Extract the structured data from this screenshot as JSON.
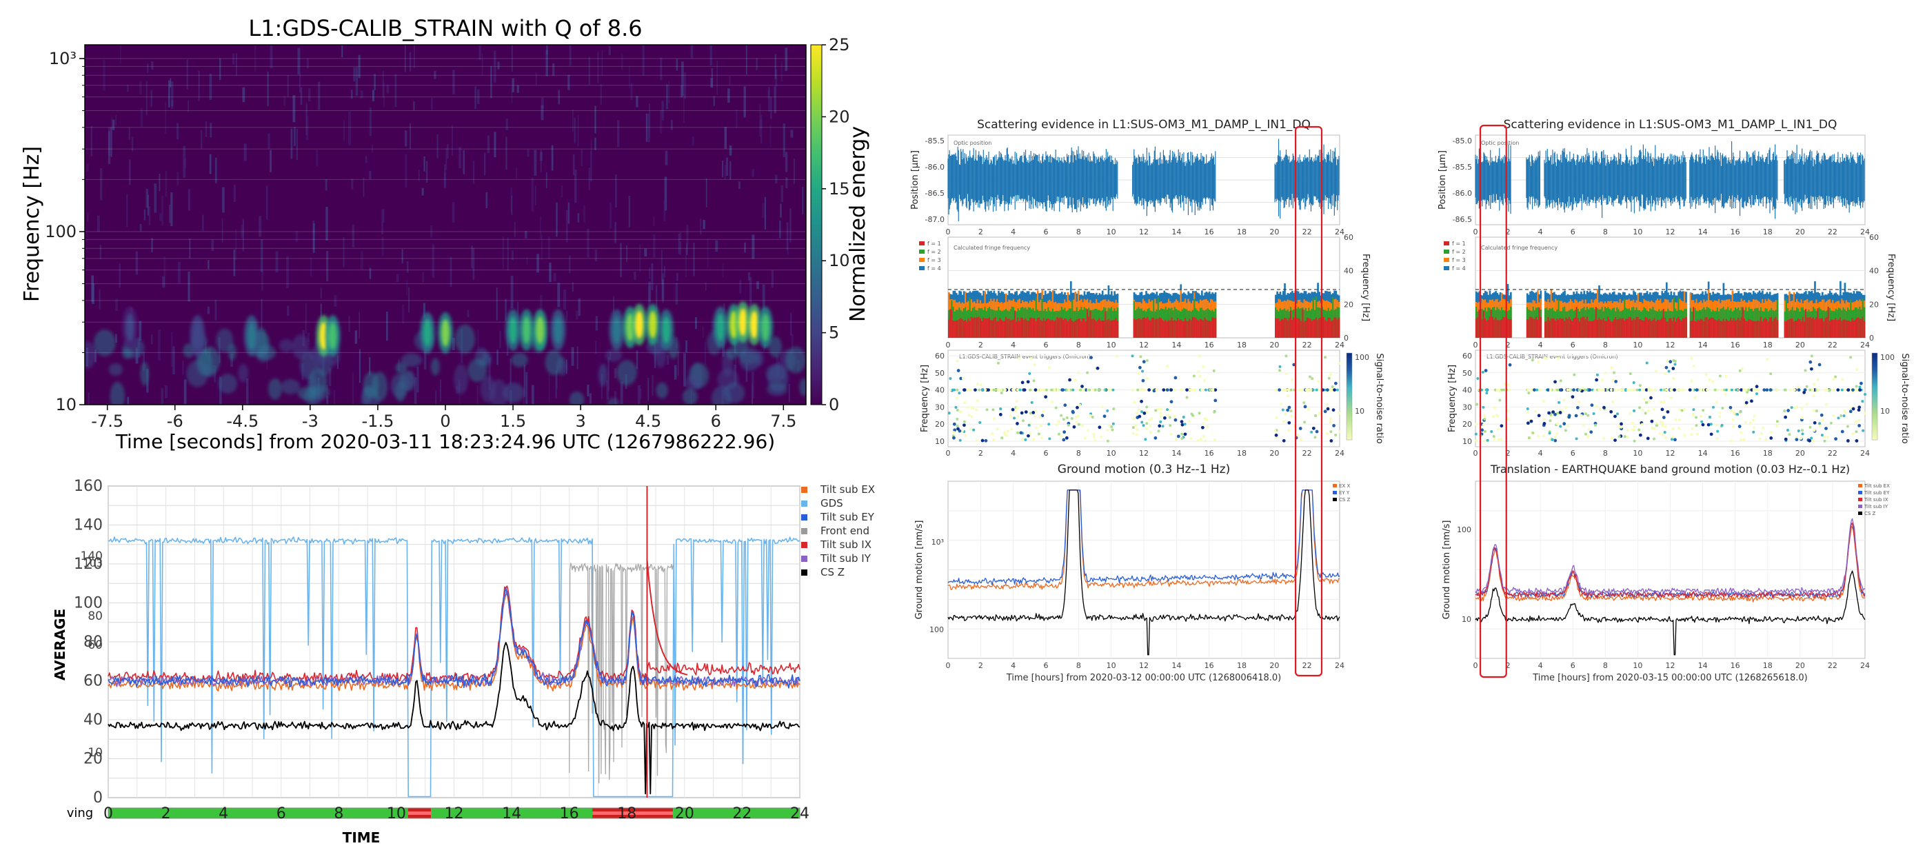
{
  "colors": {
    "viridis": [
      "#440154",
      "#482475",
      "#414487",
      "#355f8d",
      "#2a788e",
      "#21918c",
      "#22a884",
      "#44bf70",
      "#7ad151",
      "#bddf26",
      "#fde725"
    ],
    "gds": "#6ab4ee",
    "tilt_ex": "#ee6a20",
    "tilt_ey": "#2b5fd8",
    "front_end": "#9a9a9a",
    "tilt_ix": "#d8262f",
    "tilt_iy": "#8a62c4",
    "cs_z": "#000000",
    "scatter_blue": "#1f77b4",
    "red_box": "#e0181f",
    "fringe": [
      "#d62728",
      "#2ca02c",
      "#ff7f0e",
      "#1f77b4"
    ],
    "snr_scale": [
      "#f7fcb9",
      "#addd8e",
      "#41b6c4",
      "#225ea8",
      "#0c2c84"
    ]
  },
  "panel_a": {
    "title": "L1:GDS-CALIB_STRAIN with Q of 8.6",
    "ylabel": "Frequency [Hz]",
    "xlabel": "Time [seconds] from 2020-03-11 18:23:24.96 UTC (1267986222.96)",
    "colorbar_label": "Normalized energy",
    "chart_data": {
      "type": "heatmap",
      "xlim": [
        -8,
        8
      ],
      "ylim": [
        10,
        1200
      ],
      "yscale": "log",
      "x_ticks": [
        "-7.5",
        "-6",
        "-4.5",
        "-3",
        "-1.5",
        "0",
        "1.5",
        "3",
        "4.5",
        "6",
        "7.5"
      ],
      "x_tick_values": [
        -7.5,
        -6,
        -4.5,
        -3,
        -1.5,
        0,
        1.5,
        3,
        4.5,
        6,
        7.5
      ],
      "y_ticks": [
        "10",
        "100",
        "10³"
      ],
      "y_tick_values": [
        10,
        100,
        1000
      ],
      "colorbar_ticks": [
        "0",
        "5",
        "10",
        "15",
        "20",
        "25"
      ],
      "colorbar_range": [
        0,
        25
      ],
      "blobs": [
        {
          "t": -7.0,
          "f": 28,
          "e": 5
        },
        {
          "t": -5.5,
          "f": 25,
          "e": 6
        },
        {
          "t": -4.3,
          "f": 25,
          "e": 9
        },
        {
          "t": -2.7,
          "f": 25,
          "e": 24
        },
        {
          "t": -2.5,
          "f": 25,
          "e": 18
        },
        {
          "t": -0.4,
          "f": 26,
          "e": 15
        },
        {
          "t": 0.0,
          "f": 26,
          "e": 19
        },
        {
          "t": 1.5,
          "f": 27,
          "e": 14
        },
        {
          "t": 1.8,
          "f": 27,
          "e": 17
        },
        {
          "t": 2.1,
          "f": 27,
          "e": 20
        },
        {
          "t": 2.5,
          "f": 27,
          "e": 11
        },
        {
          "t": 3.8,
          "f": 27,
          "e": 10
        },
        {
          "t": 4.1,
          "f": 28,
          "e": 20
        },
        {
          "t": 4.3,
          "f": 29,
          "e": 25
        },
        {
          "t": 4.6,
          "f": 29,
          "e": 22
        },
        {
          "t": 4.9,
          "f": 27,
          "e": 15
        },
        {
          "t": 6.1,
          "f": 28,
          "e": 14
        },
        {
          "t": 6.4,
          "f": 29,
          "e": 23
        },
        {
          "t": 6.6,
          "f": 30,
          "e": 25
        },
        {
          "t": 6.85,
          "f": 29,
          "e": 24
        },
        {
          "t": 7.1,
          "f": 28,
          "e": 17
        }
      ]
    }
  },
  "panel_b": {
    "ylabel": "AVERAGE",
    "xlabel": "TIME",
    "left_edge_label": "ving",
    "chart_data": {
      "type": "line",
      "xlim": [
        0,
        24
      ],
      "ylim": [
        0,
        160
      ],
      "x_ticks": [
        "0",
        "2",
        "4",
        "6",
        "8",
        "10",
        "12",
        "14",
        "16",
        "18",
        "20",
        "22",
        "24"
      ],
      "y_ticks": [
        "0",
        "20",
        "40",
        "60",
        "80",
        "100",
        "120",
        "140",
        "160"
      ],
      "overlay_ticks": [
        "10",
        "60",
        "80",
        "103",
        "140"
      ],
      "series": [
        {
          "name": "Tilt sub EX",
          "level": 58
        },
        {
          "name": "GDS",
          "level": 132
        },
        {
          "name": "Tilt sub EY",
          "level": 60
        },
        {
          "name": "Front end",
          "level": 130
        },
        {
          "name": "Tilt sub IX",
          "level": 62
        },
        {
          "name": "Tilt sub IY",
          "level": 60
        },
        {
          "name": "CS Z",
          "level": 37
        }
      ],
      "status_bar": [
        {
          "from": 0,
          "to": 10.4,
          "state": "ok"
        },
        {
          "from": 10.4,
          "to": 11.2,
          "state": "bad"
        },
        {
          "from": 11.2,
          "to": 16.8,
          "state": "ok"
        },
        {
          "from": 16.8,
          "to": 19.6,
          "state": "bad"
        },
        {
          "from": 19.6,
          "to": 24,
          "state": "ok"
        }
      ],
      "red_marker_x": 18.7
    }
  },
  "panel_c": {
    "title": "Scattering evidence in L1:SUS-OM3_M1_DAMP_L_IN1_DQ",
    "pos_ylabel": "Position [µm]",
    "pos_legend": "Optic position",
    "pos_ticks": [
      "-85.5",
      "-86.0",
      "-86.5",
      "-87.0"
    ],
    "fringe_ylabel": "Frequency [Hz]",
    "fringe_legend": "Calculated fringe frequency",
    "fringe_ticks": [
      "0",
      "20",
      "40",
      "60"
    ],
    "fringe_orders": [
      "f = 1",
      "f = 2",
      "f = 3",
      "f = 4"
    ],
    "trig_ylabel": "Frequency [Hz]",
    "trig_legend": "L1:GDS-CALIB_STRAIN event triggers (Omicron)",
    "trig_ticks": [
      "10",
      "20",
      "30",
      "40",
      "50",
      "60"
    ],
    "snr_label": "Signal-to-noise ratio",
    "snr_ticks": [
      "100",
      "10"
    ],
    "ground_title": "Ground motion (0.3 Hz--1 Hz)",
    "ground_ylabel": "Ground motion [nm/s]",
    "ground_ticks": [
      "10³",
      "100"
    ],
    "ground_legend": [
      "EX X",
      "EY Y",
      "CS Z"
    ],
    "xlabel": "Time [hours] from 2020-03-12 00:00:00 UTC (1268006418.0)",
    "x_ticks": [
      "0",
      "2",
      "4",
      "6",
      "8",
      "10",
      "12",
      "14",
      "16",
      "18",
      "20",
      "22",
      "24"
    ],
    "chart_data": {
      "type": "line",
      "xlim": [
        0,
        24
      ],
      "gaps": [
        [
          10.4,
          11.3
        ],
        [
          16.4,
          20.0
        ]
      ],
      "highlight_x": [
        21.3,
        22.9
      ],
      "position_center": -86.05,
      "ground_peaks": [
        {
          "x": 7.7,
          "v": 900
        },
        {
          "x": 22.0,
          "v": 550
        }
      ]
    }
  },
  "panel_d": {
    "title": "Scattering evidence in L1:SUS-OM3_M1_DAMP_L_IN1_DQ",
    "pos_ylabel": "Position [µm]",
    "pos_legend": "Optic position",
    "pos_ticks": [
      "-85.0",
      "-85.5",
      "-86.0",
      "-86.5"
    ],
    "fringe_ylabel": "Frequency [Hz]",
    "fringe_legend": "Calculated fringe frequency",
    "fringe_ticks": [
      "0",
      "20",
      "40",
      "60"
    ],
    "fringe_orders": [
      "f = 1",
      "f = 2",
      "f = 3",
      "f = 4"
    ],
    "trig_ylabel": "Frequency [Hz]",
    "trig_legend": "L1:GDS-CALIB_STRAIN event triggers (Omicron)",
    "trig_ticks": [
      "10",
      "20",
      "30",
      "40",
      "50",
      "60"
    ],
    "snr_label": "Signal-to-noise ratio",
    "snr_ticks": [
      "100",
      "10"
    ],
    "ground_title": "Translation - EARTHQUAKE band ground motion (0.03 Hz--0.1 Hz)",
    "ground_ylabel": "Ground motion [nm/s]",
    "ground_ticks": [
      "100",
      "10"
    ],
    "ground_legend": [
      "Tilt sub EX",
      "Tilt sub EY",
      "Tilt sub IX",
      "Tilt sub IY",
      "CS Z"
    ],
    "xlabel": "Time [hours] from 2020-03-15 00:00:00 UTC (1268265618.0)",
    "x_ticks": [
      "0",
      "2",
      "4",
      "6",
      "8",
      "10",
      "12",
      "14",
      "16",
      "18",
      "20",
      "22",
      "24"
    ],
    "chart_data": {
      "type": "line",
      "xlim": [
        0,
        24
      ],
      "gaps": [
        [
          2.2,
          3.1
        ],
        [
          4.0,
          4.2
        ],
        [
          13.0,
          13.2
        ],
        [
          18.6,
          19.0
        ]
      ],
      "highlight_x": [
        0.3,
        1.9
      ],
      "position_center": -86.0,
      "ground_peaks": [
        {
          "x": 1.2,
          "v": 120
        },
        {
          "x": 6.0,
          "v": 60
        },
        {
          "x": 23.2,
          "v": 180
        }
      ]
    }
  }
}
